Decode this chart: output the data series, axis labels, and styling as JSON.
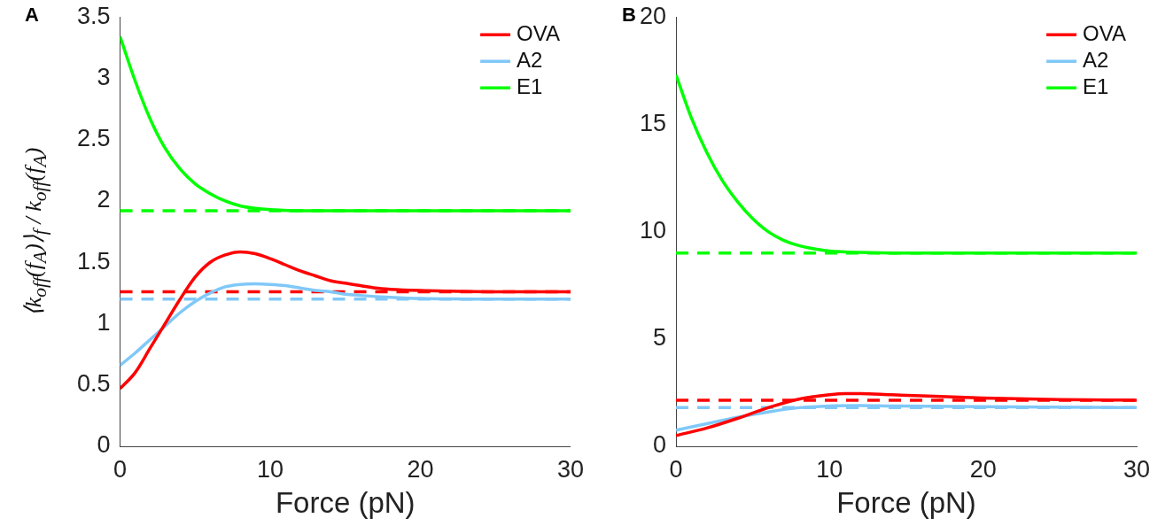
{
  "chart_data": [
    {
      "type": "line",
      "title": "A",
      "xlabel": "Force (pN)",
      "ylabel": "⟨k$_{off}$(f$_{A}$)⟩$_{f}$ / k$_{off}$(f$_{A}$)",
      "xlim": [
        0,
        30
      ],
      "ylim": [
        0,
        3.5
      ],
      "xticks": [
        0,
        10,
        20,
        30
      ],
      "yticks": [
        0,
        0.5,
        1,
        1.5,
        2,
        2.5,
        3,
        3.5
      ],
      "grid": false,
      "legend": "top right",
      "marker": "none",
      "line_style": "solid",
      "series": [
        {
          "name": "OVA",
          "color": "#ff0000",
          "x": [
            0,
            1,
            2,
            3,
            4,
            5,
            6,
            7,
            8,
            9,
            10,
            11,
            12,
            13,
            14,
            15,
            16,
            17,
            18,
            20,
            22,
            25,
            30
          ],
          "values": [
            0.47,
            0.6,
            0.8,
            1.0,
            1.2,
            1.38,
            1.5,
            1.56,
            1.585,
            1.57,
            1.53,
            1.48,
            1.43,
            1.39,
            1.35,
            1.33,
            1.31,
            1.29,
            1.28,
            1.27,
            1.265,
            1.26,
            1.26
          ]
        },
        {
          "name": "A2",
          "color": "#80c8f8",
          "x": [
            0,
            1,
            2,
            3,
            4,
            5,
            6,
            7,
            8,
            9,
            10,
            11,
            12,
            13,
            14,
            15,
            16,
            18,
            20,
            25,
            30
          ],
          "values": [
            0.66,
            0.76,
            0.87,
            0.98,
            1.09,
            1.18,
            1.25,
            1.3,
            1.32,
            1.325,
            1.32,
            1.31,
            1.29,
            1.27,
            1.26,
            1.24,
            1.23,
            1.215,
            1.205,
            1.2,
            1.2
          ]
        },
        {
          "name": "E1",
          "color": "#00ff00",
          "x": [
            0,
            1,
            2,
            3,
            4,
            5,
            6,
            7,
            8,
            9,
            10,
            12,
            15,
            30
          ],
          "values": [
            3.34,
            2.98,
            2.67,
            2.43,
            2.26,
            2.14,
            2.06,
            2.0,
            1.96,
            1.94,
            1.93,
            1.92,
            1.92,
            1.92
          ]
        }
      ],
      "ref_lines": [
        {
          "axis": "y",
          "value": 1.92,
          "color": "#00ff00",
          "line_style": "dashed"
        },
        {
          "axis": "y",
          "value": 1.26,
          "color": "#ff0000",
          "line_style": "dashed"
        },
        {
          "axis": "y",
          "value": 1.2,
          "color": "#80c8f8",
          "line_style": "dashed"
        }
      ]
    },
    {
      "type": "line",
      "title": "B",
      "xlabel": "Force (pN)",
      "xlim": [
        0,
        30
      ],
      "ylim": [
        0,
        20
      ],
      "xticks": [
        0,
        10,
        20,
        30
      ],
      "yticks": [
        0,
        5,
        10,
        15,
        20
      ],
      "grid": false,
      "legend": "top right",
      "marker": "none",
      "line_style": "solid",
      "series": [
        {
          "name": "OVA",
          "color": "#ff0000",
          "x": [
            0,
            2,
            4,
            6,
            8,
            10,
            11,
            12,
            14,
            16,
            20,
            25,
            30
          ],
          "values": [
            0.5,
            0.85,
            1.3,
            1.8,
            2.2,
            2.4,
            2.45,
            2.45,
            2.4,
            2.35,
            2.25,
            2.18,
            2.15
          ]
        },
        {
          "name": "A2",
          "color": "#80c8f8",
          "x": [
            0,
            2,
            4,
            6,
            8,
            10,
            12,
            14,
            20,
            30
          ],
          "values": [
            0.75,
            1.05,
            1.35,
            1.6,
            1.8,
            1.88,
            1.9,
            1.88,
            1.85,
            1.8
          ]
        },
        {
          "name": "E1",
          "color": "#00ff00",
          "x": [
            0,
            1,
            2,
            3,
            4,
            5,
            6,
            7,
            8,
            9,
            10,
            12,
            15,
            30
          ],
          "values": [
            17.3,
            15.3,
            13.7,
            12.4,
            11.4,
            10.6,
            10.0,
            9.6,
            9.35,
            9.2,
            9.1,
            9.03,
            9.0,
            9.0
          ]
        }
      ],
      "ref_lines": [
        {
          "axis": "y",
          "value": 9.0,
          "color": "#00ff00",
          "line_style": "dashed"
        },
        {
          "axis": "y",
          "value": 2.15,
          "color": "#ff0000",
          "line_style": "dashed"
        },
        {
          "axis": "y",
          "value": 1.8,
          "color": "#80c8f8",
          "line_style": "dashed"
        }
      ]
    }
  ]
}
